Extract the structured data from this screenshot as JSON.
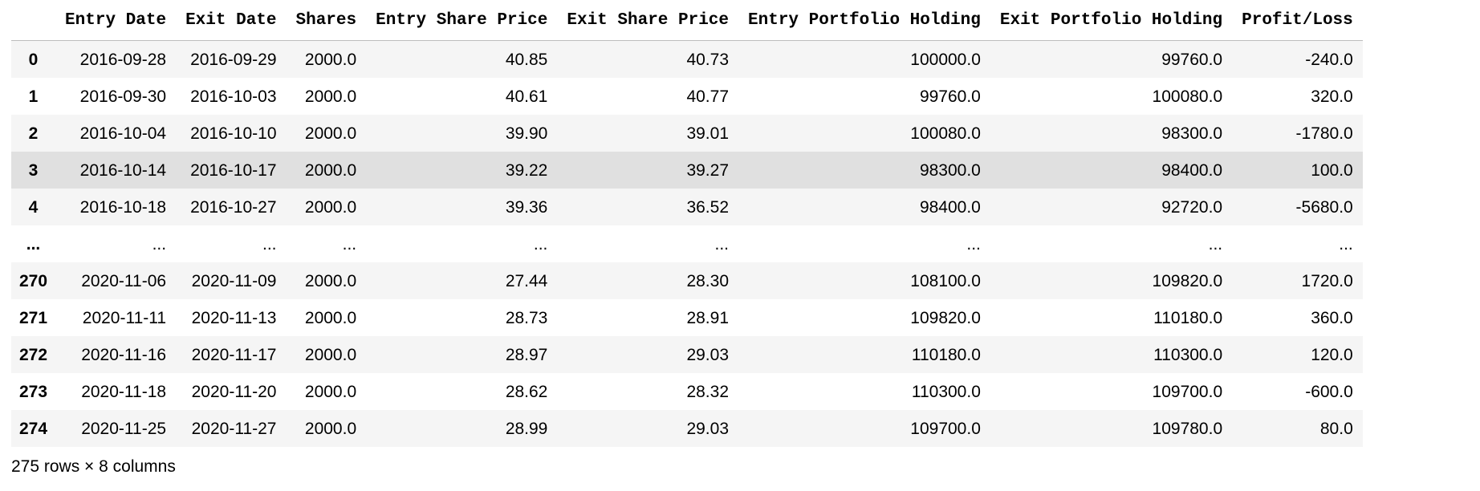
{
  "table": {
    "index_header": "",
    "columns": [
      "Entry Date",
      "Exit Date",
      "Shares",
      "Entry Share Price",
      "Exit Share Price",
      "Entry Portfolio Holding",
      "Exit Portfolio Holding",
      "Profit/Loss"
    ],
    "rows": [
      {
        "index": "0",
        "cells": [
          "2016-09-28",
          "2016-09-29",
          "2000.0",
          "40.85",
          "40.73",
          "100000.0",
          "99760.0",
          "-240.0"
        ]
      },
      {
        "index": "1",
        "cells": [
          "2016-09-30",
          "2016-10-03",
          "2000.0",
          "40.61",
          "40.77",
          "99760.0",
          "100080.0",
          "320.0"
        ]
      },
      {
        "index": "2",
        "cells": [
          "2016-10-04",
          "2016-10-10",
          "2000.0",
          "39.90",
          "39.01",
          "100080.0",
          "98300.0",
          "-1780.0"
        ]
      },
      {
        "index": "3",
        "cells": [
          "2016-10-14",
          "2016-10-17",
          "2000.0",
          "39.22",
          "39.27",
          "98300.0",
          "98400.0",
          "100.0"
        ]
      },
      {
        "index": "4",
        "cells": [
          "2016-10-18",
          "2016-10-27",
          "2000.0",
          "39.36",
          "36.52",
          "98400.0",
          "92720.0",
          "-5680.0"
        ]
      },
      {
        "index": "...",
        "cells": [
          "...",
          "...",
          "...",
          "...",
          "...",
          "...",
          "...",
          "..."
        ]
      },
      {
        "index": "270",
        "cells": [
          "2020-11-06",
          "2020-11-09",
          "2000.0",
          "27.44",
          "28.30",
          "108100.0",
          "109820.0",
          "1720.0"
        ]
      },
      {
        "index": "271",
        "cells": [
          "2020-11-11",
          "2020-11-13",
          "2000.0",
          "28.73",
          "28.91",
          "109820.0",
          "110180.0",
          "360.0"
        ]
      },
      {
        "index": "272",
        "cells": [
          "2020-11-16",
          "2020-11-17",
          "2000.0",
          "28.97",
          "29.03",
          "110180.0",
          "110300.0",
          "120.0"
        ]
      },
      {
        "index": "273",
        "cells": [
          "2020-11-18",
          "2020-11-20",
          "2000.0",
          "28.62",
          "28.32",
          "110300.0",
          "109700.0",
          "-600.0"
        ]
      },
      {
        "index": "274",
        "cells": [
          "2020-11-25",
          "2020-11-27",
          "2000.0",
          "28.99",
          "29.03",
          "109700.0",
          "109780.0",
          "80.0"
        ]
      }
    ],
    "highlighted_row": "3"
  },
  "footer": {
    "shape_text": "275 rows × 8 columns"
  }
}
